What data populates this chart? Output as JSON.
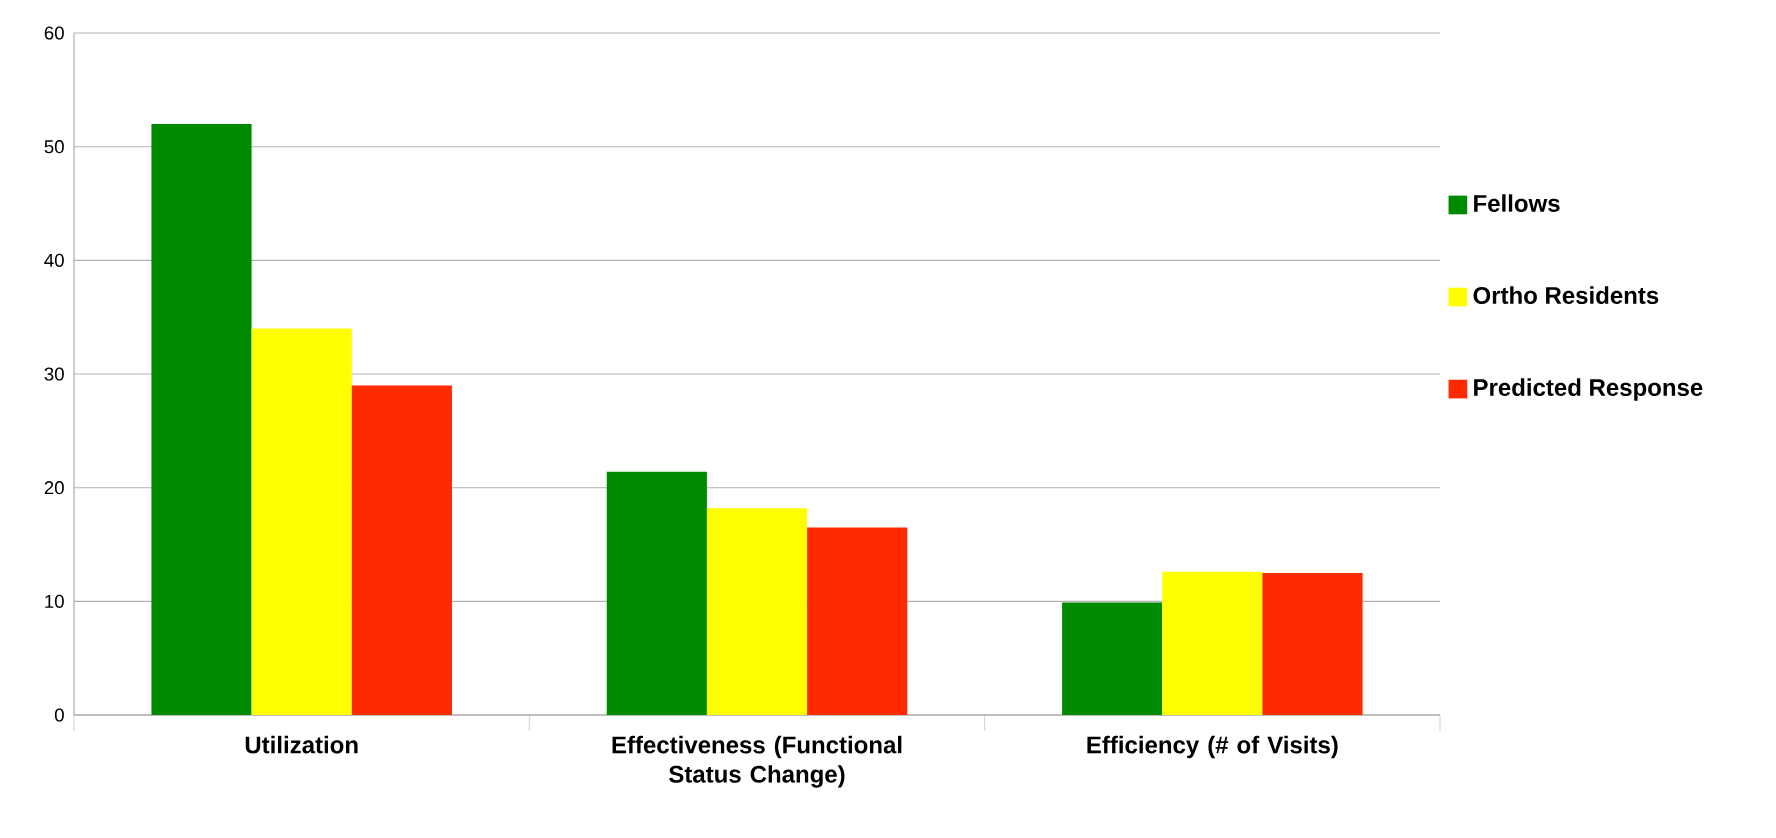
{
  "chart_data": {
    "type": "bar",
    "categories": [
      "Utilization",
      "Effectiveness (Functional Status Change)",
      "Efficiency (# of Visits)"
    ],
    "series": [
      {
        "name": "Fellows",
        "color": "#008a00",
        "values": [
          52,
          21.4,
          9.9
        ]
      },
      {
        "name": "Ortho Residents",
        "color": "#ffff00",
        "values": [
          34,
          18.2,
          12.6
        ]
      },
      {
        "name": "Predicted Response",
        "color": "#ff2a00",
        "values": [
          29,
          16.5,
          12.5
        ]
      }
    ],
    "ylim": [
      0,
      60
    ],
    "yticks": [
      0,
      10,
      20,
      30,
      40,
      50,
      60
    ],
    "grid": "y",
    "legend": "right"
  }
}
